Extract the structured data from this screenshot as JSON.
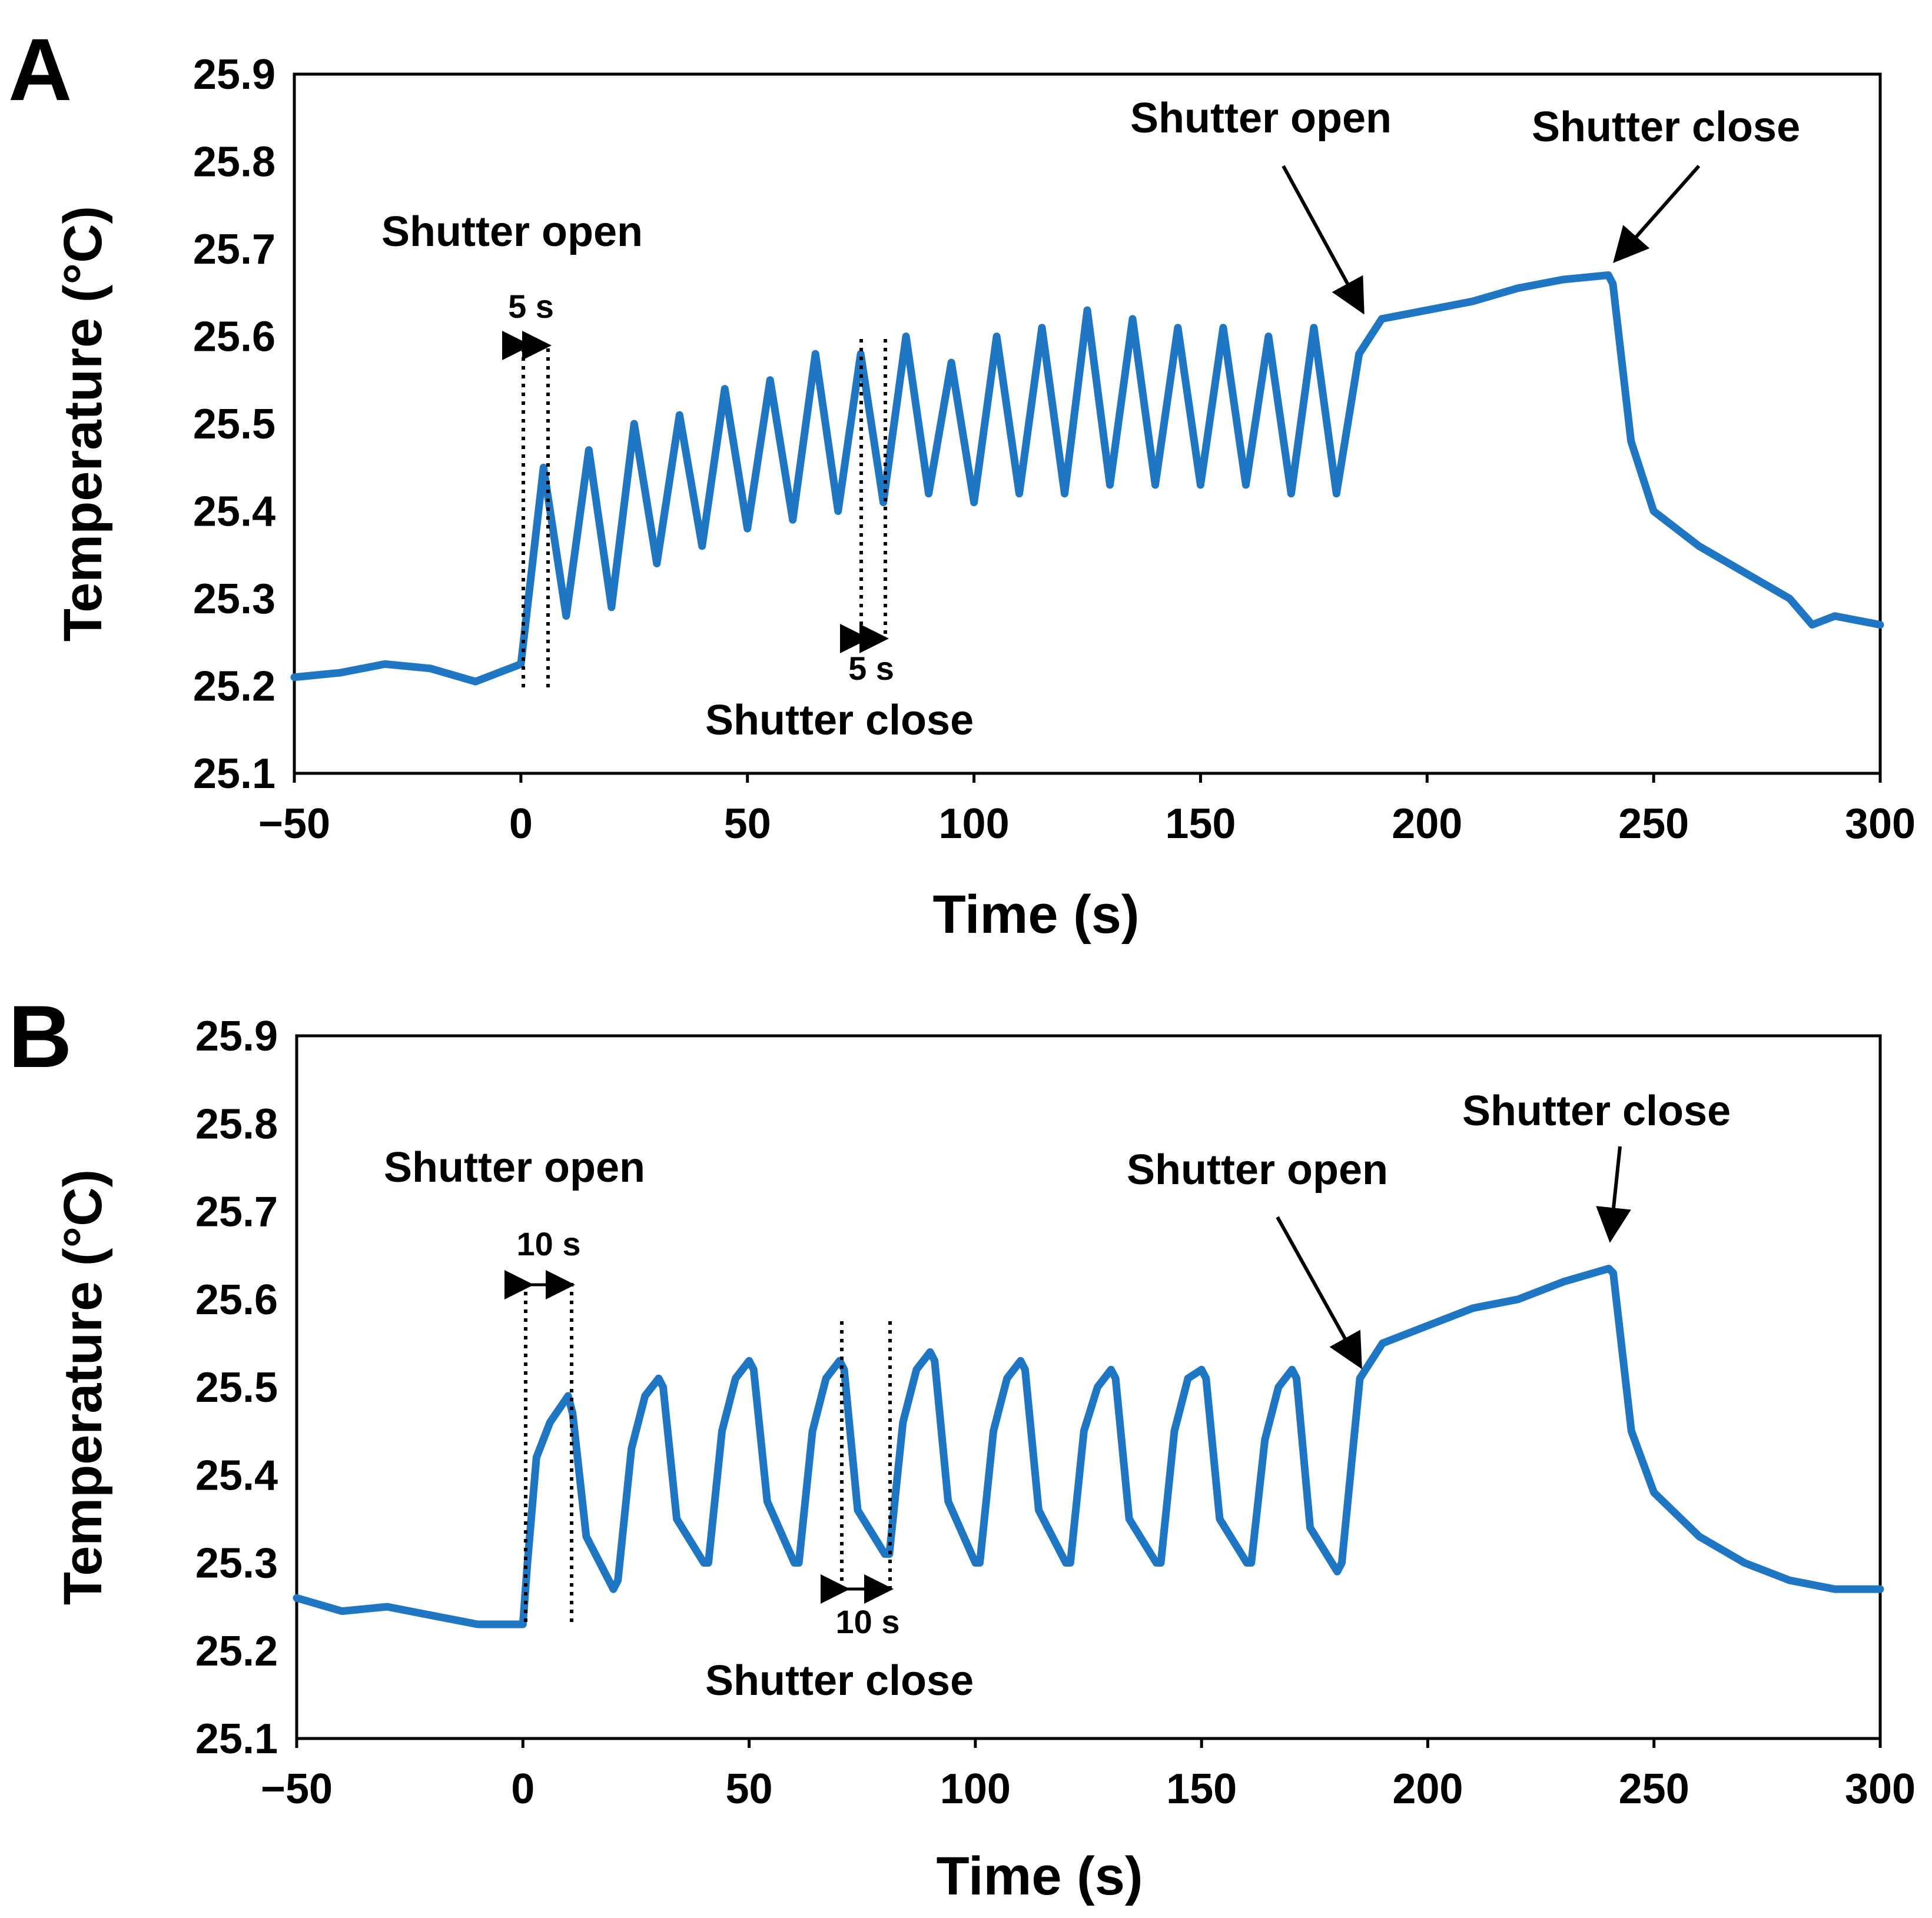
{
  "chart_data": [
    {
      "panel": "A",
      "type": "line",
      "xlabel": "Time (s)",
      "ylabel": "Temperature (°C)",
      "xlim": [
        -50,
        300
      ],
      "ylim": [
        25.1,
        25.9
      ],
      "xticks": [
        -50,
        0,
        50,
        100,
        150,
        200,
        250,
        300
      ],
      "xtick_labels": [
        "−50",
        "0",
        "50",
        "100",
        "150",
        "200",
        "250",
        "300"
      ],
      "yticks": [
        25.1,
        25.2,
        25.3,
        25.4,
        25.5,
        25.6,
        25.7,
        25.8,
        25.9
      ],
      "ytick_labels": [
        "25.1",
        "25.2",
        "25.3",
        "25.4",
        "25.5",
        "25.6",
        "25.7",
        "25.8",
        "25.9"
      ],
      "color": "#1f77c4",
      "series": [
        {
          "name": "Temperature",
          "x": [
            -50,
            -40,
            -30,
            -20,
            -10,
            -5,
            0,
            5,
            10,
            15,
            20,
            25,
            30,
            35,
            40,
            45,
            50,
            55,
            60,
            65,
            70,
            75,
            80,
            85,
            90,
            95,
            100,
            105,
            110,
            115,
            120,
            125,
            130,
            135,
            140,
            145,
            150,
            155,
            160,
            165,
            170,
            175,
            180,
            185,
            190,
            200,
            210,
            220,
            230,
            240,
            241,
            245,
            250,
            260,
            270,
            280,
            285,
            290,
            300
          ],
          "y": [
            25.21,
            25.215,
            25.225,
            25.22,
            25.205,
            25.215,
            25.225,
            25.45,
            25.28,
            25.47,
            25.29,
            25.5,
            25.34,
            25.51,
            25.36,
            25.54,
            25.38,
            25.55,
            25.39,
            25.58,
            25.4,
            25.58,
            25.41,
            25.6,
            25.42,
            25.57,
            25.41,
            25.6,
            25.42,
            25.61,
            25.42,
            25.63,
            25.43,
            25.62,
            25.43,
            25.61,
            25.43,
            25.61,
            25.43,
            25.6,
            25.42,
            25.61,
            25.42,
            25.58,
            25.62,
            25.63,
            25.64,
            25.655,
            25.665,
            25.67,
            25.66,
            25.48,
            25.4,
            25.36,
            25.33,
            25.3,
            25.27,
            25.28,
            25.27
          ]
        }
      ],
      "annotations": {
        "open_left": "Shutter open",
        "close_center": "Shutter close",
        "open_right": "Shutter open",
        "close_right": "Shutter close",
        "duration_top": "5 s",
        "duration_bottom": "5 s"
      }
    },
    {
      "panel": "B",
      "type": "line",
      "xlabel": "Time (s)",
      "ylabel": "Temperature (°C)",
      "xlim": [
        -50,
        300
      ],
      "ylim": [
        25.1,
        25.9
      ],
      "xticks": [
        -50,
        0,
        50,
        100,
        150,
        200,
        250,
        300
      ],
      "xtick_labels": [
        "−50",
        "0",
        "50",
        "100",
        "150",
        "200",
        "250",
        "300"
      ],
      "yticks": [
        25.1,
        25.2,
        25.3,
        25.4,
        25.5,
        25.6,
        25.7,
        25.8,
        25.9
      ],
      "ytick_labels": [
        "25.1",
        "25.2",
        "25.3",
        "25.4",
        "25.5",
        "25.6",
        "25.7",
        "25.8",
        "25.9"
      ],
      "color": "#1f77c4",
      "series": [
        {
          "name": "Temperature",
          "x": [
            -50,
            -40,
            -30,
            -20,
            -10,
            0,
            1,
            3,
            6,
            10,
            11,
            14,
            20,
            21,
            24,
            27,
            30,
            31,
            34,
            40,
            41,
            44,
            47,
            50,
            51,
            54,
            60,
            61,
            64,
            67,
            70,
            71,
            74,
            80,
            81,
            84,
            87,
            90,
            91,
            94,
            100,
            101,
            104,
            107,
            110,
            111,
            114,
            120,
            121,
            124,
            127,
            130,
            131,
            134,
            140,
            141,
            144,
            147,
            150,
            151,
            154,
            160,
            161,
            164,
            167,
            170,
            171,
            174,
            180,
            181,
            185,
            190,
            200,
            210,
            220,
            230,
            240,
            241,
            245,
            250,
            260,
            270,
            280,
            290,
            300
          ],
          "y": [
            25.26,
            25.245,
            25.25,
            25.24,
            25.23,
            25.23,
            25.3,
            25.42,
            25.46,
            25.49,
            25.47,
            25.33,
            25.27,
            25.28,
            25.43,
            25.49,
            25.51,
            25.5,
            25.35,
            25.3,
            25.3,
            25.45,
            25.51,
            25.53,
            25.52,
            25.37,
            25.3,
            25.3,
            25.45,
            25.51,
            25.53,
            25.52,
            25.36,
            25.31,
            25.31,
            25.46,
            25.52,
            25.54,
            25.53,
            25.37,
            25.3,
            25.3,
            25.45,
            25.51,
            25.53,
            25.52,
            25.36,
            25.3,
            25.3,
            25.45,
            25.5,
            25.52,
            25.51,
            25.35,
            25.3,
            25.3,
            25.45,
            25.51,
            25.52,
            25.51,
            25.35,
            25.3,
            25.3,
            25.44,
            25.5,
            25.52,
            25.51,
            25.34,
            25.29,
            25.3,
            25.51,
            25.55,
            25.57,
            25.59,
            25.6,
            25.62,
            25.635,
            25.63,
            25.45,
            25.38,
            25.33,
            25.3,
            25.28,
            25.27,
            25.27
          ]
        }
      ],
      "annotations": {
        "open_left": "Shutter open",
        "close_center": "Shutter close",
        "open_right": "Shutter open",
        "close_right": "Shutter close",
        "duration_top": "10 s",
        "duration_bottom": "10 s"
      }
    }
  ]
}
